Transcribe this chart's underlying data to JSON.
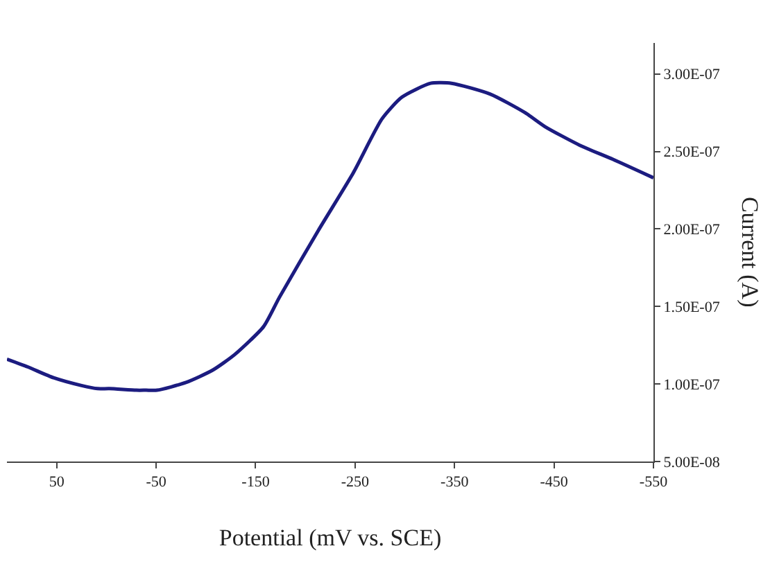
{
  "chart_data": {
    "type": "line",
    "xlabel": "Potential (mV vs. SCE)",
    "ylabel": "Current (A)",
    "x": [
      100,
      79,
      53,
      25,
      9,
      -3,
      -30,
      -40,
      -51,
      -80,
      -107,
      -129,
      -158,
      -174,
      -213,
      -248,
      -277,
      -297,
      -326,
      -347,
      -386,
      -421,
      -441,
      -476,
      -509,
      -550
    ],
    "series": [
      {
        "color": "#1c1c80",
        "values": [
          1.16e-07,
          1.11e-07,
          1.04e-07,
          9.9e-08,
          9.7e-08,
          9.7e-08,
          9.6e-08,
          9.6e-08,
          9.6e-08,
          1.01e-07,
          1.09e-07,
          1.19e-07,
          1.37e-07,
          1.56e-07,
          1.99e-07,
          2.36e-07,
          2.71e-07,
          2.85e-07,
          2.94e-07,
          2.94e-07,
          2.87e-07,
          2.75e-07,
          2.66e-07,
          2.54e-07,
          2.45e-07,
          2.33e-07
        ]
      }
    ],
    "xlim": [
      100,
      -550
    ],
    "xticks": [
      50,
      -50,
      -150,
      -250,
      -350,
      -450,
      -550
    ],
    "ylim": [
      5e-08,
      3.2e-07
    ],
    "yticks": [
      {
        "value": 5e-08,
        "label": "5.00E-08"
      },
      {
        "value": 1e-07,
        "label": "1.00E-07"
      },
      {
        "value": 1.5e-07,
        "label": "1.50E-07"
      },
      {
        "value": 2e-07,
        "label": "2.00E-07"
      },
      {
        "value": 2.5e-07,
        "label": "2.50E-07"
      },
      {
        "value": 3e-07,
        "label": "3.00E-07"
      }
    ],
    "marker": "none",
    "line_style": "solid"
  }
}
